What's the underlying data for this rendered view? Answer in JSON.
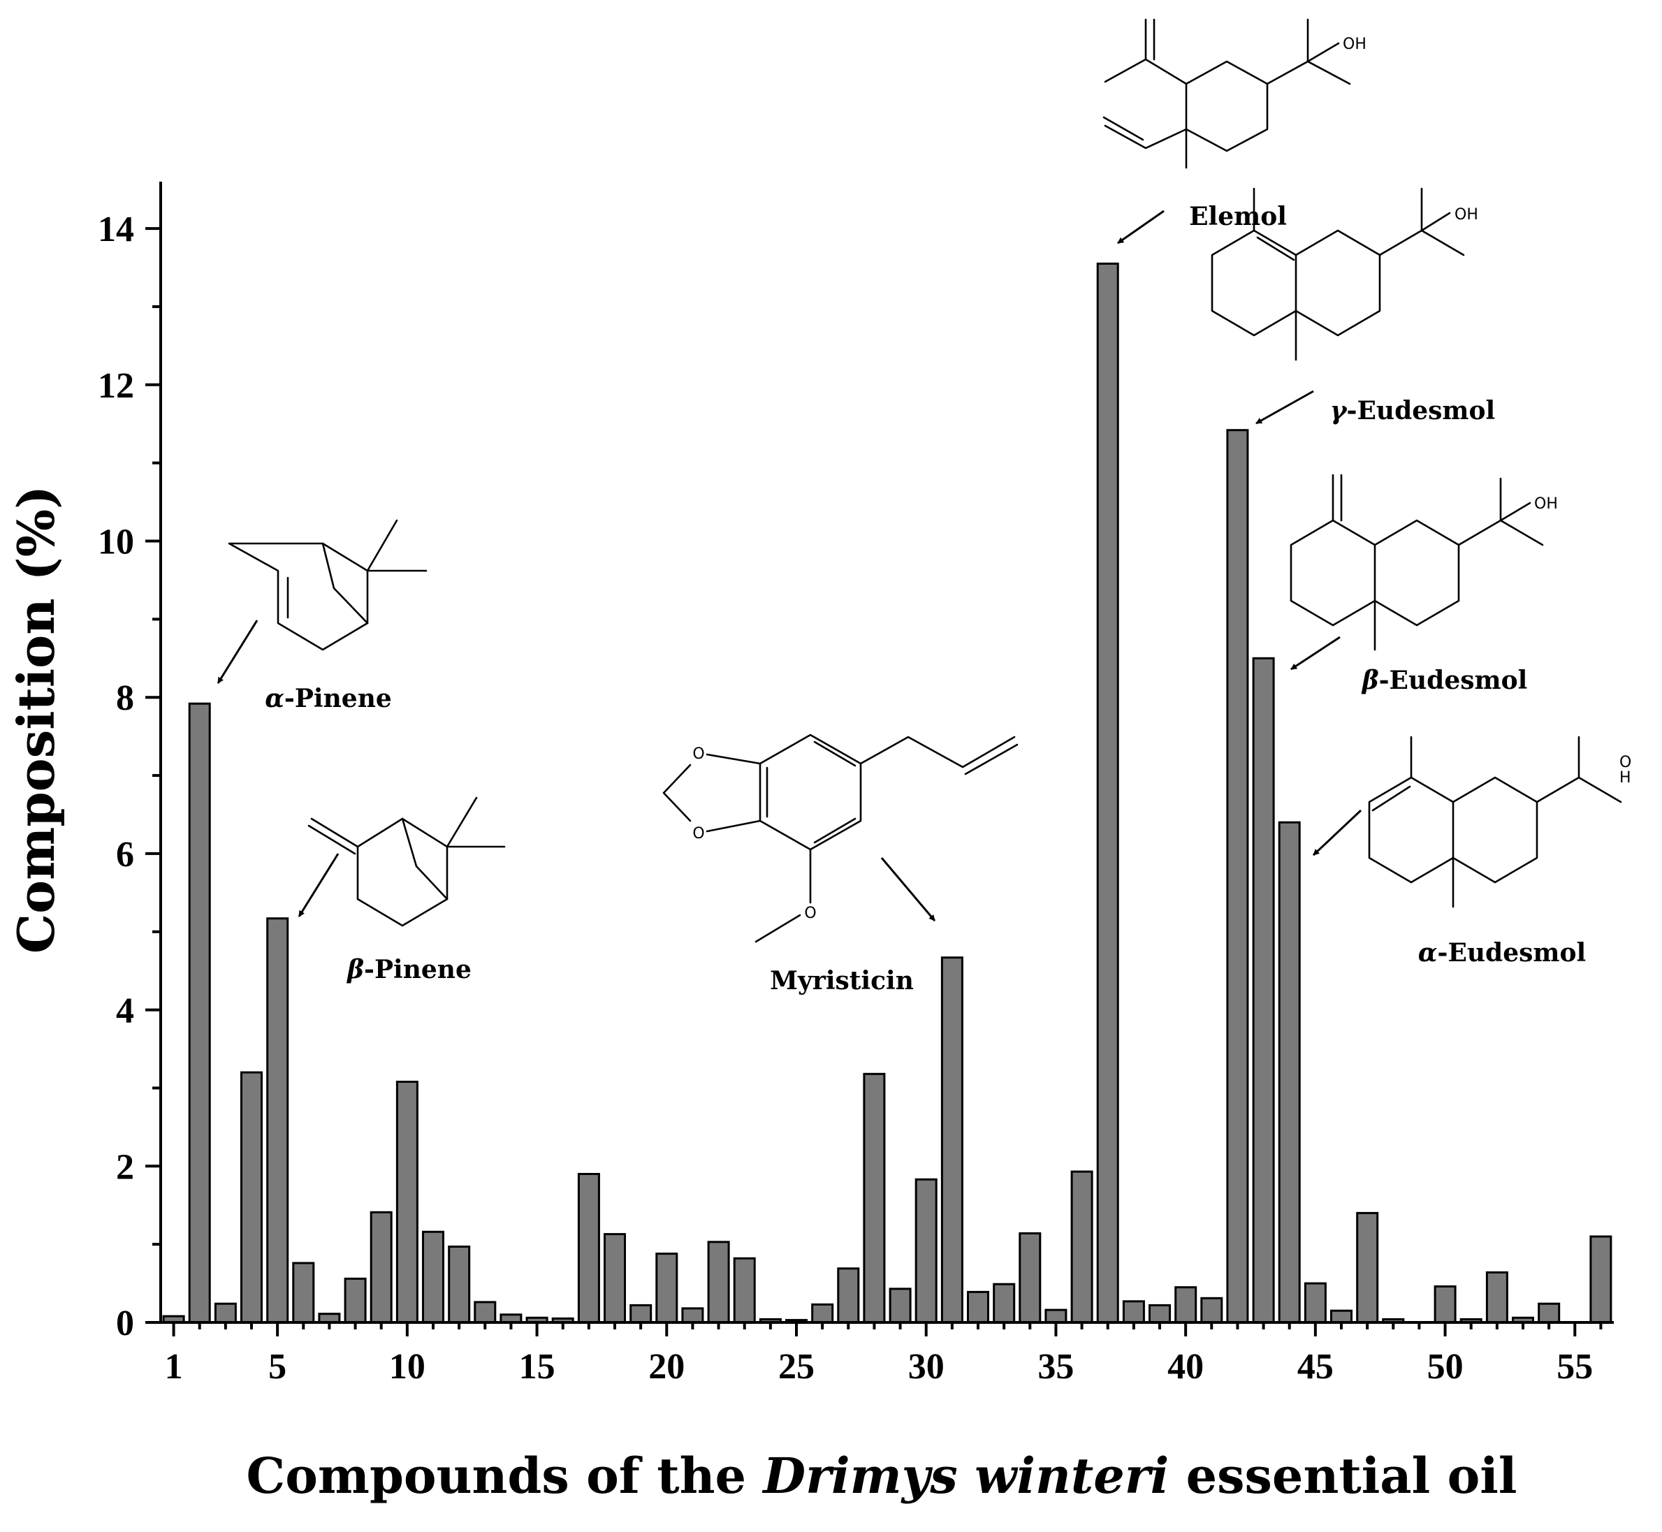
{
  "chart_data": {
    "type": "bar",
    "xlabel_parts": [
      {
        "text": "Compounds of the ",
        "italic": false
      },
      {
        "text": "Drimys winteri",
        "italic": true
      },
      {
        "text": " essential oil",
        "italic": false
      }
    ],
    "ylabel": "Composition (%)",
    "ylim": [
      0,
      14.6
    ],
    "y_ticks": [
      0,
      2,
      4,
      6,
      8,
      10,
      12,
      14
    ],
    "x_ticks": [
      1,
      5,
      10,
      15,
      20,
      25,
      30,
      35,
      40,
      45,
      50,
      55
    ],
    "x": [
      1,
      2,
      3,
      4,
      5,
      6,
      7,
      8,
      9,
      10,
      11,
      12,
      13,
      14,
      15,
      16,
      17,
      18,
      19,
      20,
      21,
      22,
      23,
      24,
      25,
      26,
      27,
      28,
      29,
      30,
      31,
      32,
      33,
      34,
      35,
      36,
      37,
      38,
      39,
      40,
      41,
      42,
      43,
      44,
      45,
      46,
      47,
      48,
      49,
      50,
      51,
      52,
      53,
      54,
      55,
      56
    ],
    "values": [
      0.08,
      7.92,
      0.24,
      3.2,
      5.17,
      0.76,
      0.11,
      0.56,
      1.41,
      3.08,
      1.16,
      0.97,
      0.26,
      0.1,
      0.06,
      0.05,
      1.9,
      1.13,
      0.22,
      0.88,
      0.18,
      1.03,
      0.82,
      0.04,
      0.03,
      0.23,
      0.69,
      3.18,
      0.43,
      1.83,
      4.67,
      0.39,
      0.49,
      1.14,
      0.16,
      1.93,
      13.55,
      0.27,
      0.22,
      0.45,
      0.31,
      11.42,
      8.5,
      6.4,
      0.5,
      0.15,
      1.4,
      0.04,
      0.0,
      0.46,
      0.04,
      0.64,
      0.06,
      0.24,
      0.0,
      1.1
    ],
    "annotations": [
      {
        "label_greek": "α",
        "label_rest": "-Pinene",
        "compound": 2
      },
      {
        "label_greek": "β",
        "label_rest": "-Pinene",
        "compound": 5
      },
      {
        "label_greek": "",
        "label_rest": "Myristicin",
        "compound": 31
      },
      {
        "label_greek": "",
        "label_rest": "Elemol",
        "compound": 37
      },
      {
        "label_greek": "γ",
        "label_rest": "-Eudesmol",
        "compound": 42
      },
      {
        "label_greek": "β",
        "label_rest": "-Eudesmol",
        "compound": 43
      },
      {
        "label_greek": "α",
        "label_rest": "-Eudesmol",
        "compound": 44
      }
    ],
    "structure_text": {
      "hydroxyl": "OH",
      "oxygen": "O",
      "hydroxyl_o": "O",
      "hydroxyl_h": "H"
    },
    "bar_color": "#7a7a7a",
    "grid": false,
    "legend": "none"
  }
}
